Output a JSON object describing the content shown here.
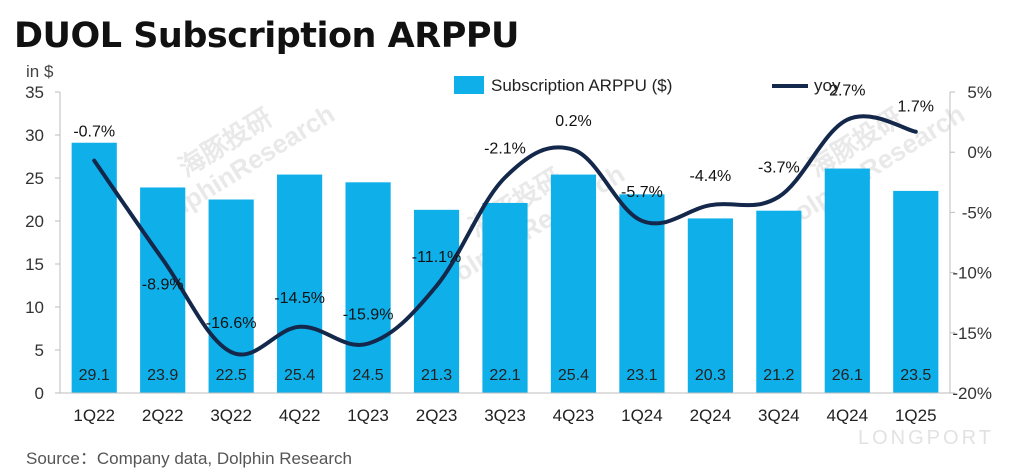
{
  "title": "DUOL Subscription ARPPU",
  "unit_label": "in $",
  "source": "Source：Company data, Dolphin Research",
  "watermark": [
    "海豚投研",
    "DolphinResearch"
  ],
  "brand": "LONGPORT",
  "colors": {
    "bar": "#0fb0ea",
    "line": "#14284b"
  },
  "chart_data": {
    "type": "bar",
    "title": "DUOL Subscription ARPPU",
    "ylabel": "in $",
    "categories": [
      "1Q22",
      "2Q22",
      "3Q22",
      "4Q22",
      "1Q23",
      "2Q23",
      "3Q23",
      "4Q23",
      "1Q24",
      "2Q24",
      "3Q24",
      "4Q24",
      "1Q25"
    ],
    "series": [
      {
        "name": "Subscription ARPPU ($)",
        "type": "bar",
        "axis": "left",
        "values": [
          29.1,
          23.9,
          22.5,
          25.4,
          24.5,
          21.3,
          22.1,
          25.4,
          23.1,
          20.3,
          21.2,
          26.1,
          23.5
        ],
        "labels": [
          "29.1",
          "23.9",
          "22.5",
          "25.4",
          "24.5",
          "21.3",
          "22.1",
          "25.4",
          "23.1",
          "20.3",
          "21.2",
          "26.1",
          "23.5"
        ]
      },
      {
        "name": "yoy",
        "type": "line",
        "axis": "right",
        "values": [
          -0.7,
          -8.9,
          -16.6,
          -14.5,
          -15.9,
          -11.1,
          -2.1,
          0.2,
          -5.7,
          -4.4,
          -3.7,
          2.7,
          1.7
        ],
        "labels": [
          "-0.7%",
          "-8.9%",
          "-16.6%",
          "-14.5%",
          "-15.9%",
          "-11.1%",
          "-2.1%",
          "0.2%",
          "-5.7%",
          "-4.4%",
          "-3.7%",
          "2.7%",
          "1.7%"
        ]
      }
    ],
    "ylim": [
      0,
      35
    ],
    "yticks": [
      "0",
      "5",
      "10",
      "15",
      "20",
      "25",
      "30",
      "35"
    ],
    "y2lim": [
      -20,
      5
    ],
    "y2ticks": [
      "-20%",
      "-15%",
      "-10%",
      "-5%",
      "0%",
      "5%"
    ],
    "legend": "top",
    "grid": false
  }
}
